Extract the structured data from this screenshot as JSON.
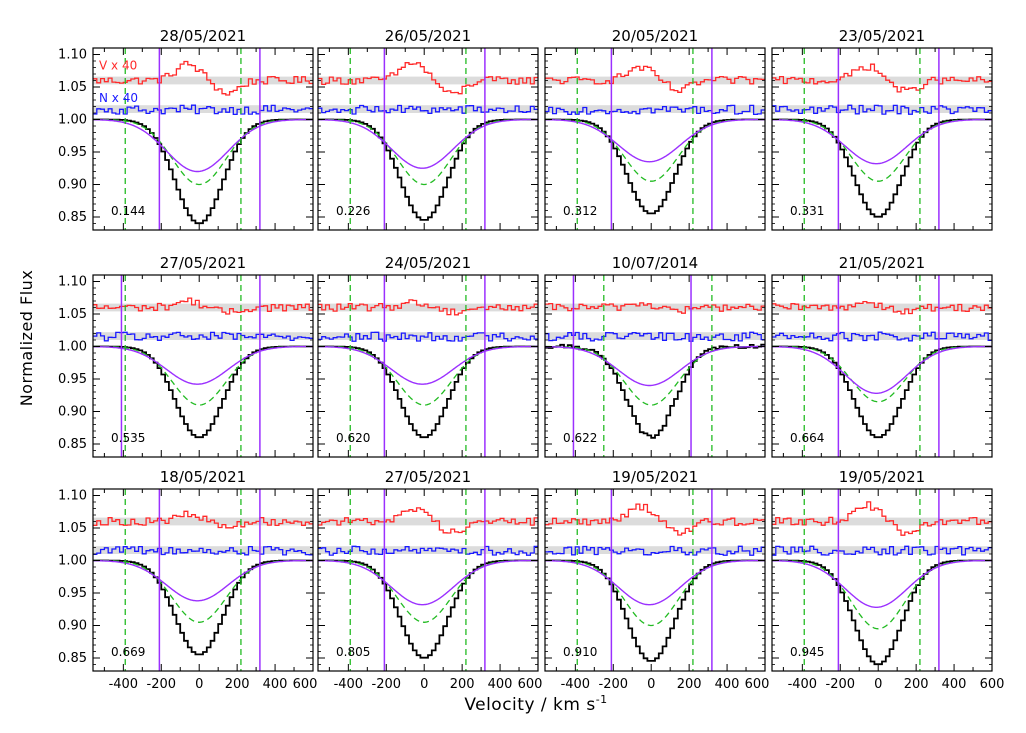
{
  "chart_data": {
    "type": "line",
    "ylabel": "Normalized Flux",
    "xlabel": "Velocity / km s",
    "xlabel_sup": "-1",
    "xlim": [
      -560,
      600
    ],
    "ylim": [
      0.83,
      1.11
    ],
    "xticks": [
      -400,
      -200,
      0,
      200,
      400,
      600
    ],
    "yticks": [
      "0.85",
      "0.90",
      "0.95",
      "1.00",
      "1.05",
      "1.10"
    ],
    "legend": [
      {
        "label": "V x  40",
        "color": "#ff2a2a"
      },
      {
        "label": "N x  40",
        "color": "#1a1aff"
      }
    ],
    "colors": {
      "stokes_i": "#000000",
      "stokes_v": "#ff2a2a",
      "null": "#1a1aff",
      "model": "#9b30ff",
      "reference": "#22bb22",
      "error_band": "#dcdcdc"
    },
    "panels": [
      {
        "date": "28/05/2021",
        "phase": "0.144",
        "depth": 0.16,
        "model_depth": 0.08,
        "green_depth": 0.1,
        "v_amp": 0.025,
        "v_lines": [
          -210,
          320
        ],
        "g_lines": [
          -390,
          220
        ]
      },
      {
        "date": "26/05/2021",
        "phase": "0.226",
        "depth": 0.155,
        "model_depth": 0.075,
        "green_depth": 0.1,
        "v_amp": 0.028,
        "v_lines": [
          -210,
          320
        ],
        "g_lines": [
          -390,
          220
        ]
      },
      {
        "date": "20/05/2021",
        "phase": "0.312",
        "depth": 0.145,
        "model_depth": 0.065,
        "green_depth": 0.095,
        "v_amp": 0.02,
        "v_lines": [
          -210,
          320
        ],
        "g_lines": [
          -390,
          220
        ]
      },
      {
        "date": "23/05/2021",
        "phase": "0.331",
        "depth": 0.15,
        "model_depth": 0.068,
        "green_depth": 0.095,
        "v_amp": 0.022,
        "v_lines": [
          -210,
          320
        ],
        "g_lines": [
          -390,
          220
        ]
      },
      {
        "date": "27/05/2021",
        "phase": "0.535",
        "depth": 0.14,
        "model_depth": 0.058,
        "green_depth": 0.09,
        "v_amp": 0.01,
        "v_lines": [
          -410,
          320
        ],
        "g_lines": [
          -390,
          220
        ]
      },
      {
        "date": "24/05/2021",
        "phase": "0.620",
        "depth": 0.14,
        "model_depth": 0.058,
        "green_depth": 0.09,
        "v_amp": 0.008,
        "v_lines": [
          -210,
          320
        ],
        "g_lines": [
          -390,
          220
        ]
      },
      {
        "date": "10/07/2014",
        "phase": "0.622",
        "depth": 0.14,
        "model_depth": 0.06,
        "green_depth": 0.09,
        "v_amp": 0.006,
        "v_lines": [
          -410,
          210
        ],
        "g_lines": [
          -250,
          320
        ]
      },
      {
        "date": "21/05/2021",
        "phase": "0.664",
        "depth": 0.14,
        "model_depth": 0.072,
        "green_depth": 0.085,
        "v_amp": 0.008,
        "v_lines": [
          -210,
          320
        ],
        "g_lines": [
          -390,
          220
        ]
      },
      {
        "date": "18/05/2021",
        "phase": "0.669",
        "depth": 0.145,
        "model_depth": 0.062,
        "green_depth": 0.095,
        "v_amp": 0.01,
        "v_lines": [
          -210,
          320
        ],
        "g_lines": [
          -390,
          220
        ]
      },
      {
        "date": "27/05/2021",
        "phase": "0.805",
        "depth": 0.15,
        "model_depth": 0.068,
        "green_depth": 0.095,
        "v_amp": 0.02,
        "v_lines": [
          -210,
          320
        ],
        "g_lines": [
          -390,
          220
        ]
      },
      {
        "date": "19/05/2021",
        "phase": "0.910",
        "depth": 0.155,
        "model_depth": 0.068,
        "green_depth": 0.1,
        "v_amp": 0.024,
        "v_lines": [
          -210,
          320
        ],
        "g_lines": [
          -390,
          220
        ]
      },
      {
        "date": "19/05/2021",
        "phase": "0.945",
        "depth": 0.16,
        "model_depth": 0.072,
        "green_depth": 0.105,
        "v_amp": 0.026,
        "v_lines": [
          -210,
          320
        ],
        "g_lines": [
          -390,
          220
        ]
      }
    ]
  }
}
